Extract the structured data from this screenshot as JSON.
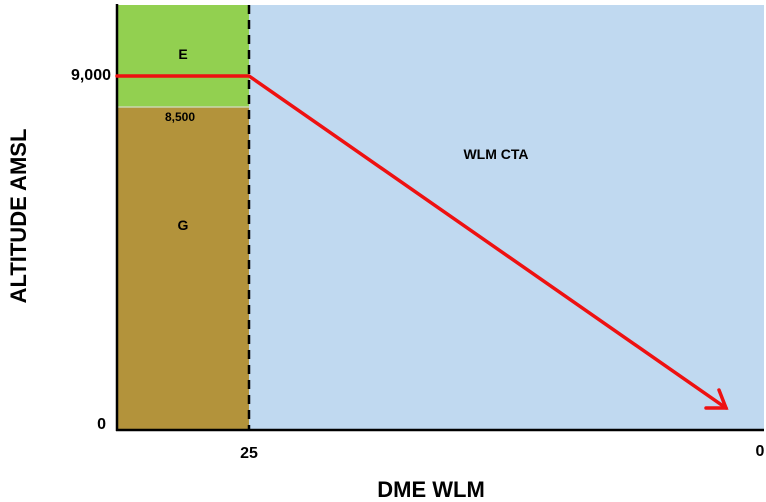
{
  "axes": {
    "y_label": "ALTITUDE AMSL",
    "x_label": "DME WLM",
    "y_ticks": [
      "9,000",
      "0"
    ],
    "x_ticks": [
      "25",
      "0"
    ]
  },
  "zones": {
    "upper_class": "E",
    "boundary_altitude": "8,500",
    "lower_class": "G",
    "controlled_area": "WLM CTA"
  },
  "colors": {
    "class_e": "#92d050",
    "class_g": "#b3933b",
    "cta": "#c0d9f0",
    "profile_line": "#ee1111"
  },
  "profile": {
    "level_altitude": 9000,
    "descent_start_dme": 25,
    "end_dme": 0,
    "end_altitude": 0,
    "arrow_at_end": true
  }
}
